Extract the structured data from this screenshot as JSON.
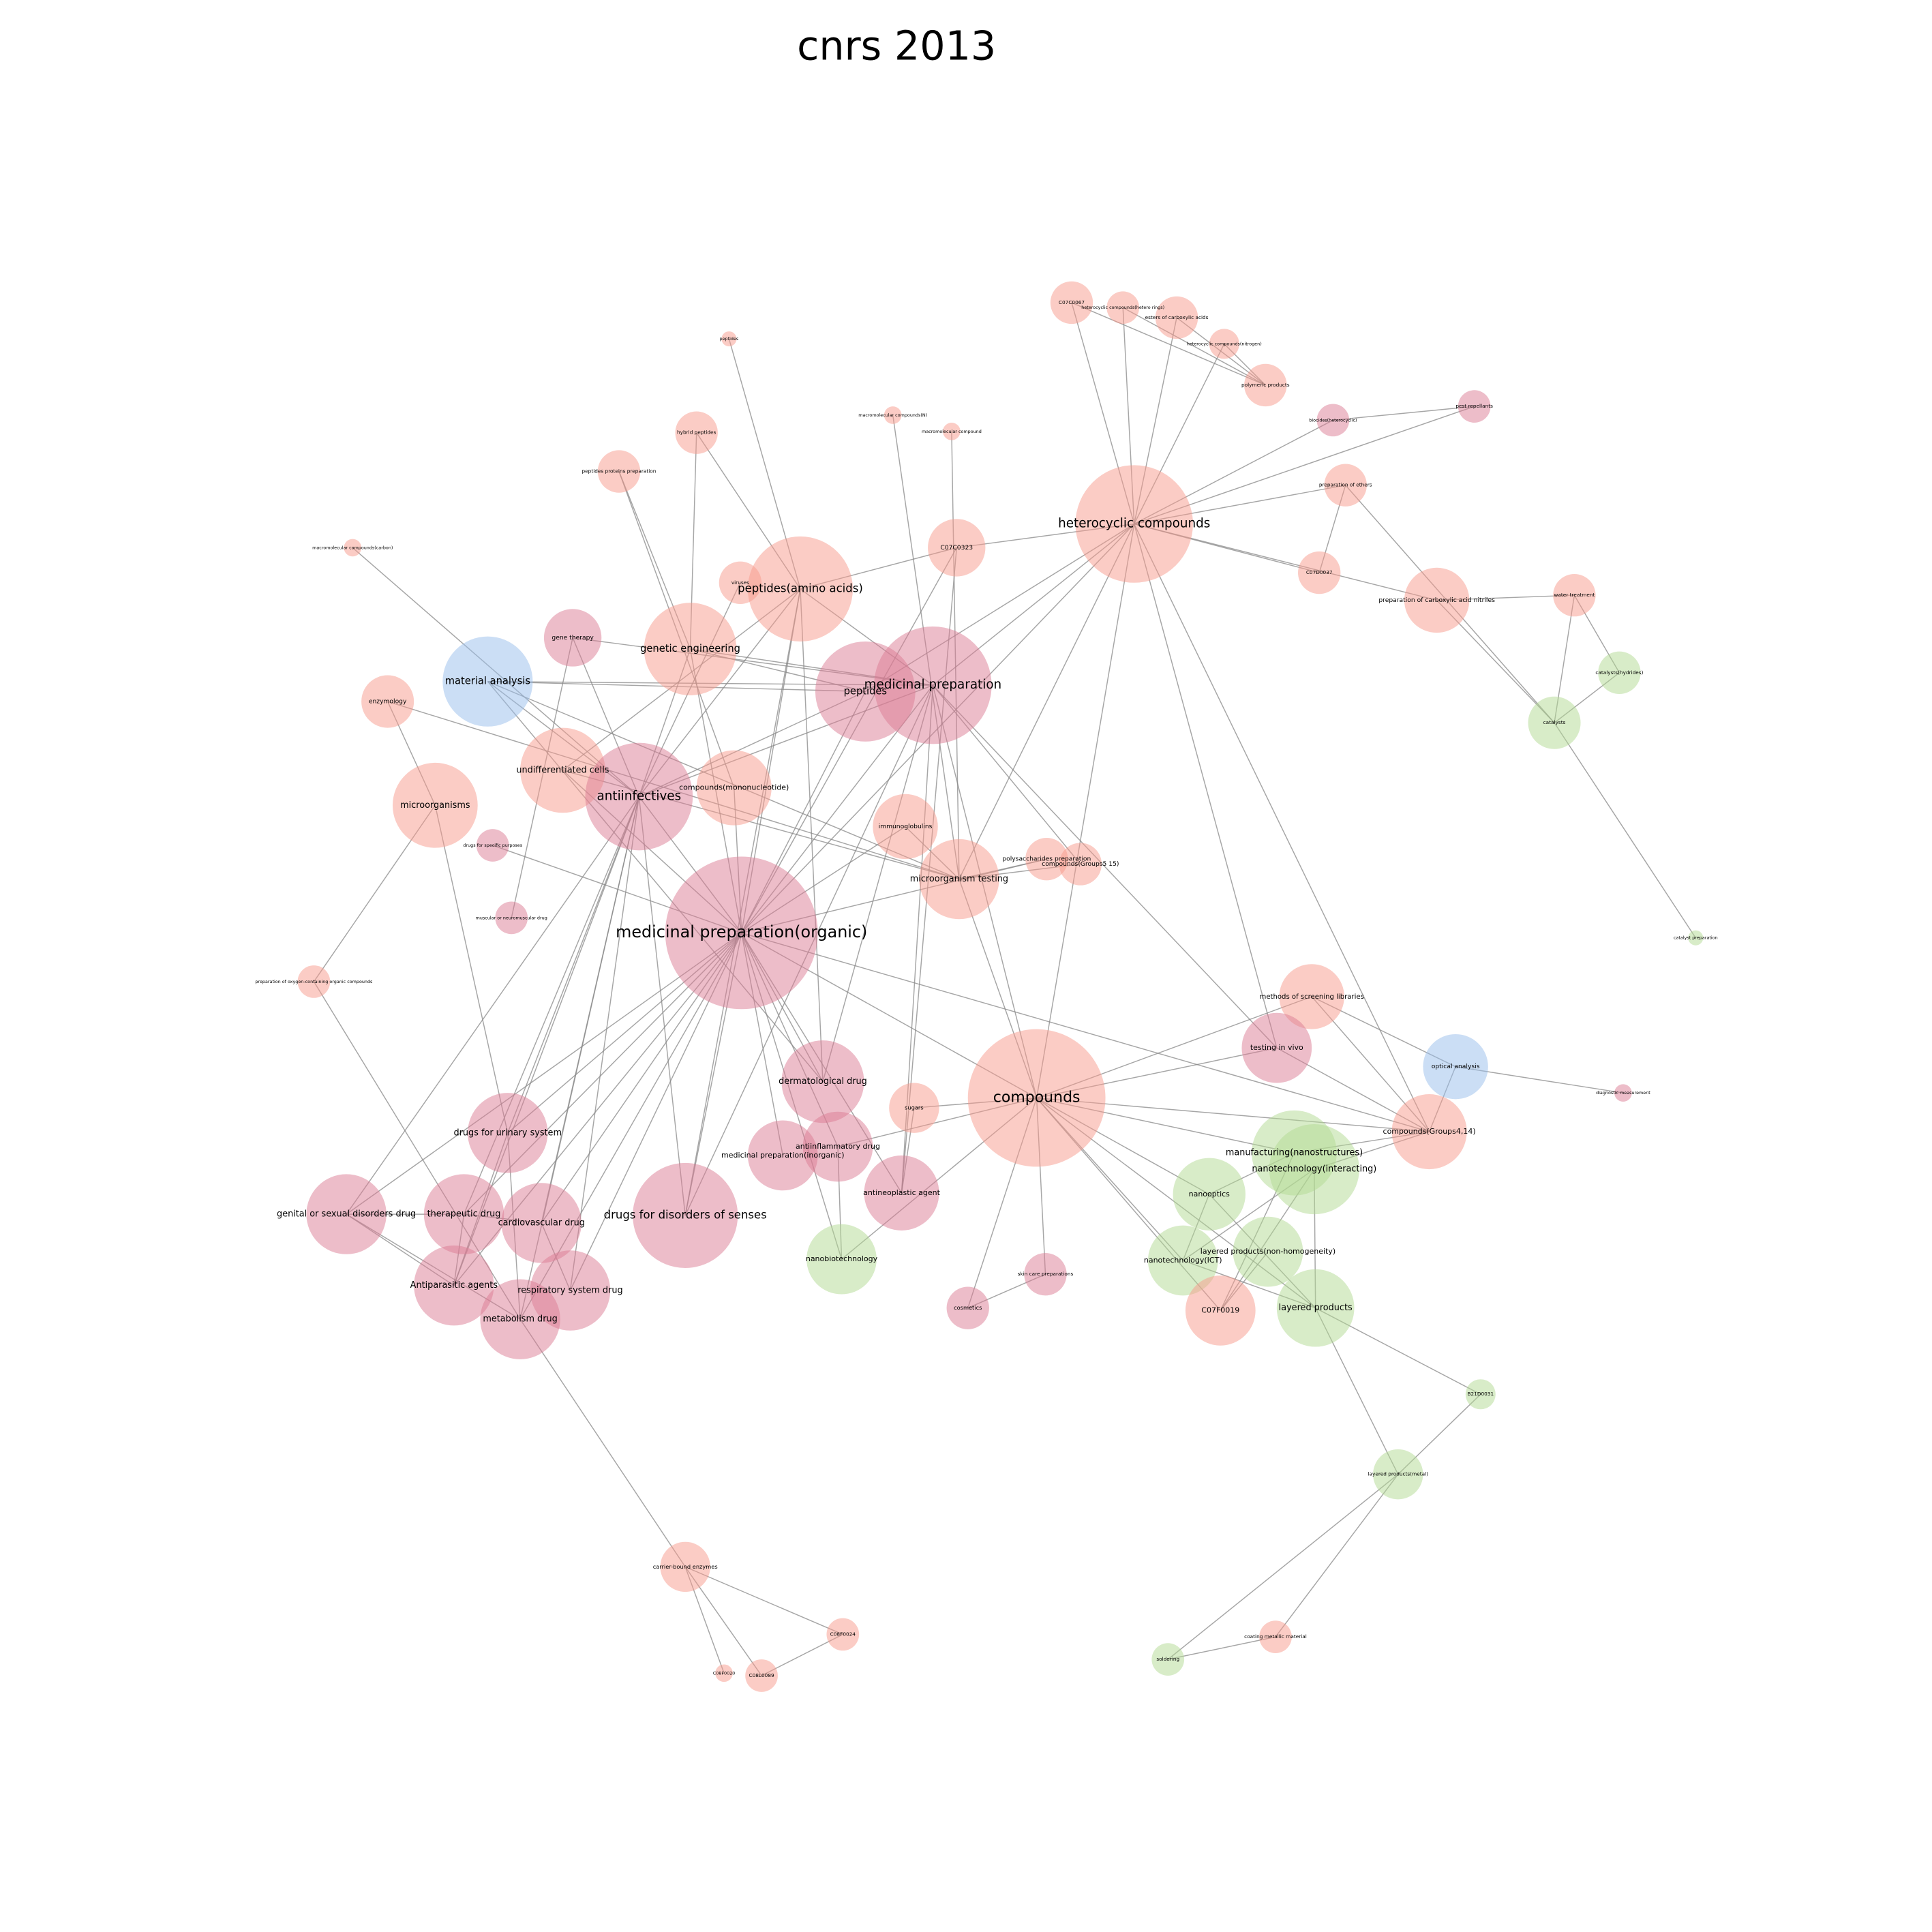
{
  "title": "cnrs 2013",
  "nodes": [
    {
      "label": "peptides"
    },
    {
      "label": "hybrid peptides"
    },
    {
      "label": "peptides proteins preparation"
    },
    {
      "label": "macromolecular compounds(N)"
    },
    {
      "label": "macromolecular compound"
    },
    {
      "label": "C07C0067"
    },
    {
      "label": "heterocyclic compounds(hetero rings)"
    },
    {
      "label": "esters of carboxylic acids"
    },
    {
      "label": "heterocyclic compounds(nitrogen)"
    },
    {
      "label": "polymeric products"
    },
    {
      "label": "biocides(heterocyclic)"
    },
    {
      "label": "pest repellants"
    },
    {
      "label": "preparation of ethers"
    },
    {
      "label": "heterocyclic compounds"
    },
    {
      "label": "C07C0323"
    },
    {
      "label": "C07D0037"
    },
    {
      "label": "preparation of carboxylic acid nitriles"
    },
    {
      "label": "water treatment"
    },
    {
      "label": "catalysts(hydrides)"
    },
    {
      "label": "catalysts"
    },
    {
      "label": "catalyst preparation"
    },
    {
      "label": "macromolecular compounds(carbon)"
    },
    {
      "label": "viruses"
    },
    {
      "label": "peptides(amino acids)"
    },
    {
      "label": "gene therapy"
    },
    {
      "label": "genetic engineering"
    },
    {
      "label": "material analysis"
    },
    {
      "label": "enzymology"
    },
    {
      "label": "peptides"
    },
    {
      "label": "medicinal preparation"
    },
    {
      "label": "undifferentiated cells"
    },
    {
      "label": "antiinfectives"
    },
    {
      "label": "compounds(mononucleotide)"
    },
    {
      "label": "microorganisms"
    },
    {
      "label": "drugs for specific purposes"
    },
    {
      "label": "immunoglobulins"
    },
    {
      "label": "polysaccharides preparation"
    },
    {
      "label": "compounds(Groups5 15)"
    },
    {
      "label": "microorganism testing"
    },
    {
      "label": "muscular or neuromuscular drug"
    },
    {
      "label": "medicinal preparation(organic)"
    },
    {
      "label": "preparation of oxygen-containing organic compounds"
    },
    {
      "label": "methods of screening libraries"
    },
    {
      "label": "testing in vivo"
    },
    {
      "label": "optical analysis"
    },
    {
      "label": "diagnostic measurement"
    },
    {
      "label": "dermatological drug"
    },
    {
      "label": "sugars"
    },
    {
      "label": "compounds"
    },
    {
      "label": "drugs for urinary system"
    },
    {
      "label": "compounds(Groups4,14)"
    },
    {
      "label": "antiinflammatory drug"
    },
    {
      "label": "medicinal preparation(inorganic)"
    },
    {
      "label": "manufacturing(nanostructures)"
    },
    {
      "label": "nanotechnology(interacting)"
    },
    {
      "label": "antineoplastic agent"
    },
    {
      "label": "nanooptics"
    },
    {
      "label": "genital or sexual disorders drug"
    },
    {
      "label": "therapeutic drug"
    },
    {
      "label": "cardiovascular drug"
    },
    {
      "label": "drugs for disorders of senses"
    },
    {
      "label": "layered products(non-homogeneity)"
    },
    {
      "label": "nanobiotechnology"
    },
    {
      "label": "nanotechnology(ICT)"
    },
    {
      "label": "skin care preparations"
    },
    {
      "label": "Antiparasitic agents"
    },
    {
      "label": "respiratory system drug"
    },
    {
      "label": "cosmetics"
    },
    {
      "label": "C07F0019"
    },
    {
      "label": "layered products"
    },
    {
      "label": "metabolism drug"
    },
    {
      "label": "B21D0031"
    },
    {
      "label": "layered products(metal)"
    },
    {
      "label": "carrier-bound enzymes"
    },
    {
      "label": "C08F0024"
    },
    {
      "label": "coating metallic material"
    },
    {
      "label": "C08F0020"
    },
    {
      "label": "C08L0089"
    },
    {
      "label": "soldering"
    }
  ]
}
